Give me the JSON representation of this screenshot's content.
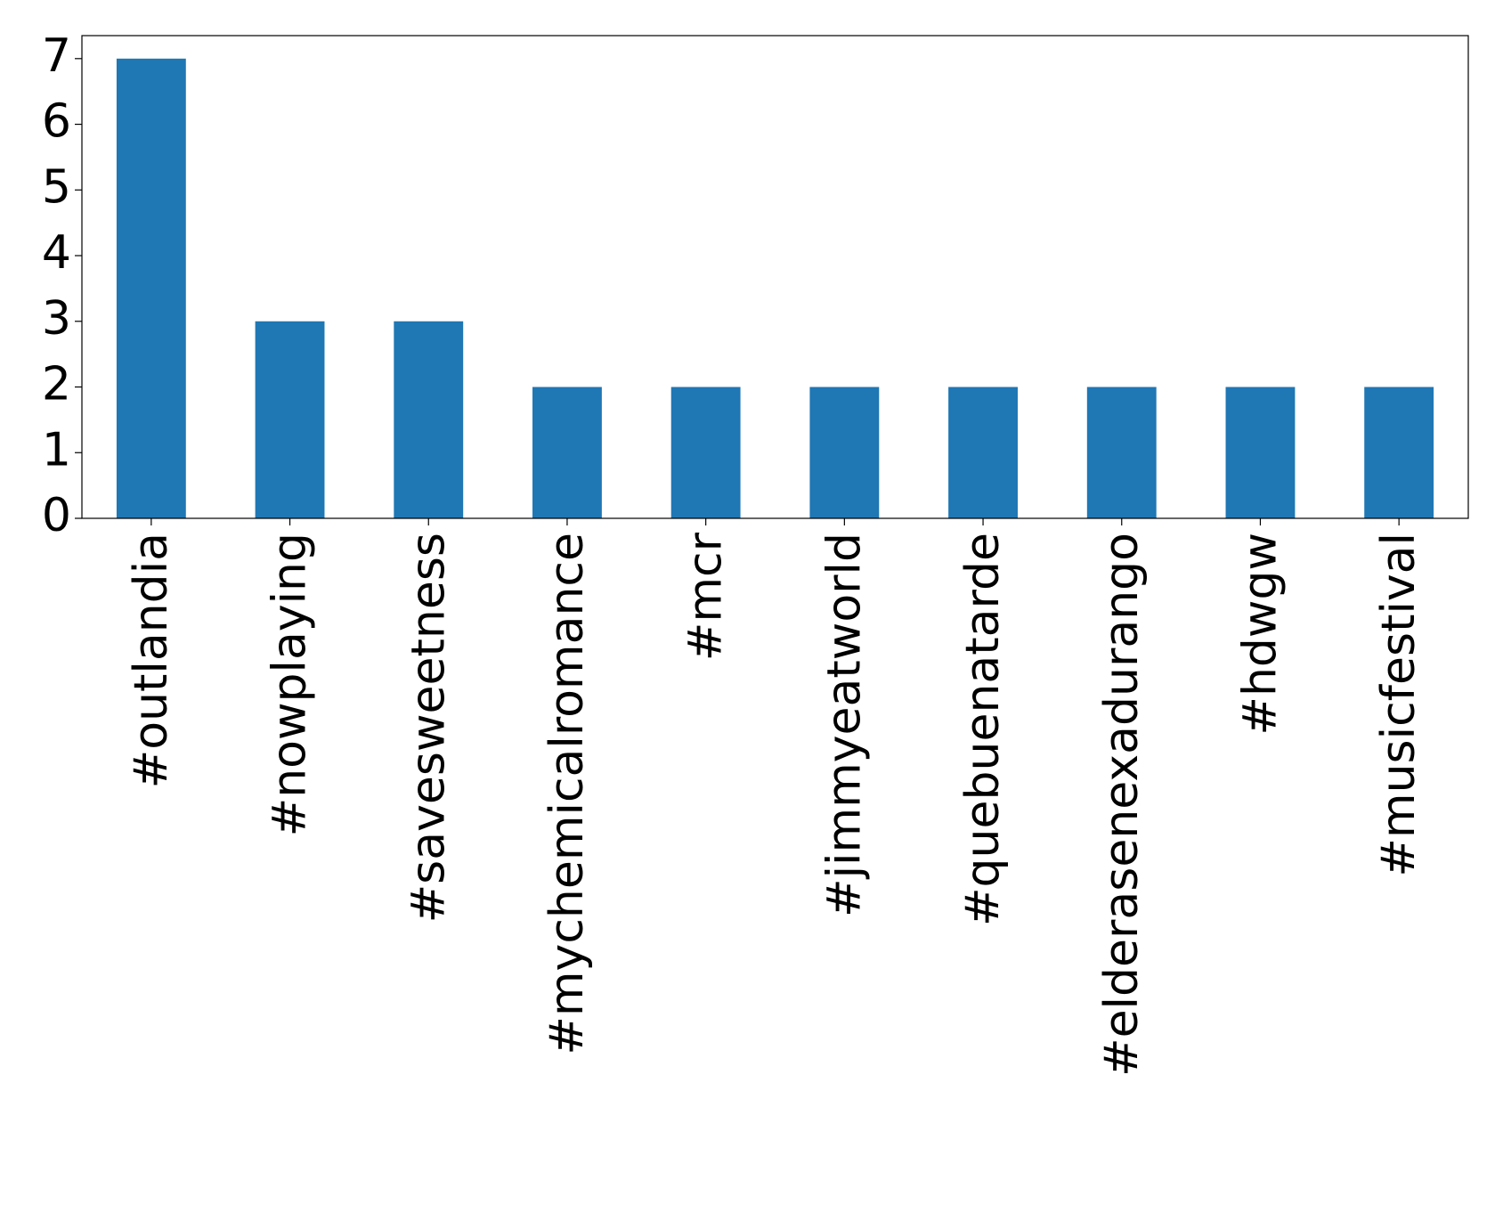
{
  "chart_data": {
    "type": "bar",
    "categories": [
      "#outlandia",
      "#nowplaying",
      "#savesweetness",
      "#mychemicalromance",
      "#mcr",
      "#jimmyeatworld",
      "#quebuenatarde",
      "#elderasenexadurango",
      "#hdwgw",
      "#musicfestival"
    ],
    "values": [
      7,
      3,
      3,
      2,
      2,
      2,
      2,
      2,
      2,
      2
    ],
    "color": "#1f77b4",
    "ylim": [
      0,
      7.35
    ],
    "yticks": [
      0,
      1,
      2,
      3,
      4,
      5,
      6,
      7
    ],
    "grid": false
  }
}
